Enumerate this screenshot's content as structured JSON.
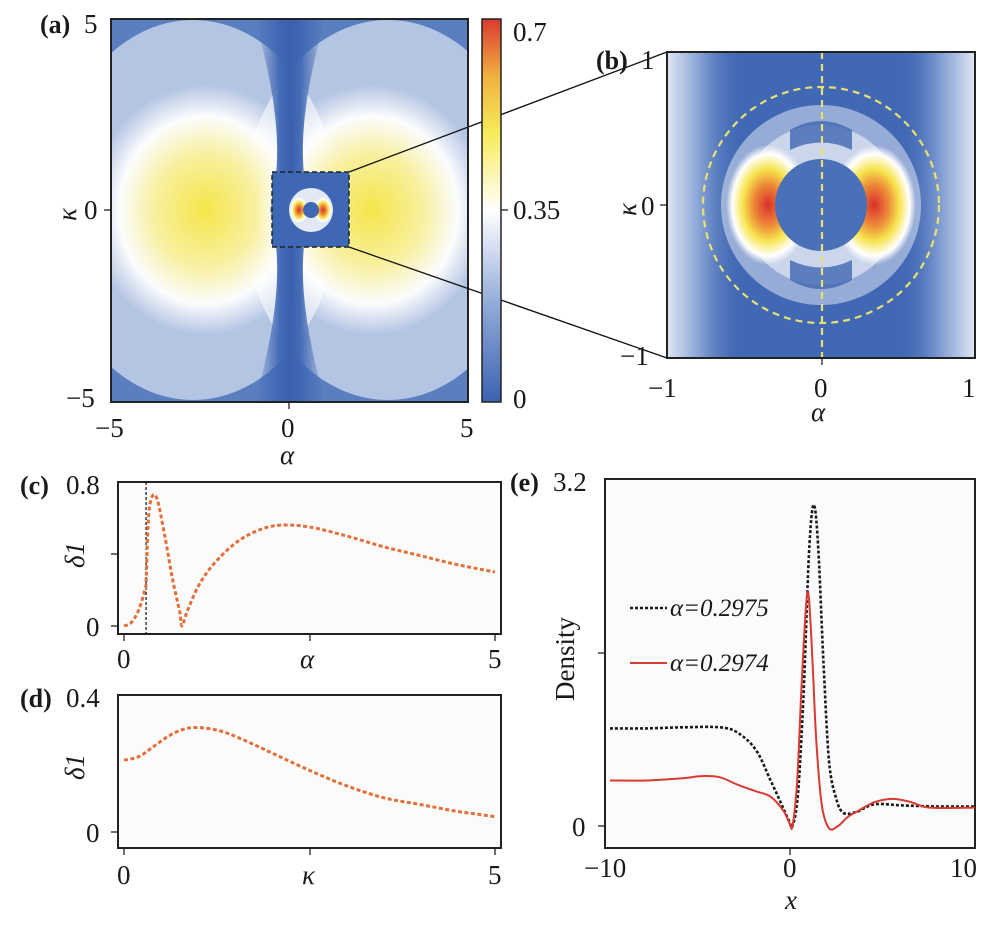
{
  "chart_data": [
    {
      "panel": "(a)",
      "type": "heatmap",
      "xlabel": "α",
      "ylabel": "κ",
      "xlim": [
        -5,
        5
      ],
      "ylim": [
        -5,
        5
      ],
      "xticks": [
        "−5",
        "0",
        "5"
      ],
      "yticks": [
        "5",
        "0",
        "−5"
      ],
      "colorbar": {
        "min": 0,
        "max": 0.7,
        "ticks": [
          "0.7",
          "0.35",
          "0"
        ],
        "colors": [
          "#3b62b0",
          "#ffffff",
          "#f5e84a",
          "#dc3b2c"
        ]
      },
      "inset_box": {
        "alpha": [
          -1,
          1
        ],
        "kappa": [
          -1,
          1
        ]
      },
      "features": [
        {
          "description": "broad yellow lobes",
          "alpha": -2.3,
          "kappa": 0,
          "value": 0.45
        },
        {
          "description": "broad yellow lobes",
          "alpha": 2.3,
          "kappa": 0,
          "value": 0.45
        },
        {
          "description": "dark blue vertical band",
          "alpha": 0,
          "value": 0.05
        }
      ]
    },
    {
      "panel": "(b)",
      "type": "heatmap",
      "xlabel": "α",
      "ylabel": "κ",
      "xlim": [
        -1,
        1
      ],
      "ylim": [
        -1,
        1
      ],
      "xticks": [
        "−1",
        "0",
        "1"
      ],
      "yticks": [
        "1",
        "0",
        "−1"
      ],
      "features": [
        {
          "description": "red crescent peak",
          "alpha": -0.36,
          "kappa": 0,
          "value": 0.7
        },
        {
          "description": "red crescent peak",
          "alpha": 0.36,
          "kappa": 0,
          "value": 0.7
        },
        {
          "description": "inner blue disk radius",
          "radius": 0.3
        },
        {
          "description": "dashed yellow circle radius",
          "radius": 0.77
        },
        {
          "description": "dashed yellow vertical line",
          "alpha": 0
        }
      ]
    },
    {
      "panel": "(c)",
      "type": "line",
      "xlabel": "α",
      "ylabel": "δ1",
      "xlim": [
        0,
        5
      ],
      "ylim": [
        0,
        0.8
      ],
      "xticks": [
        "0",
        "",
        "5"
      ],
      "yticks": [
        "0.8",
        "",
        "0"
      ],
      "vline": 0.2975,
      "series": [
        {
          "name": "δ1",
          "color": "#e2703a",
          "x": [
            0.0,
            0.1,
            0.2,
            0.28,
            0.2975,
            0.33,
            0.38,
            0.45,
            0.55,
            0.65,
            0.75,
            0.78,
            0.85,
            1.0,
            1.2,
            1.5,
            1.8,
            2.1,
            2.5,
            3.0,
            3.5,
            4.0,
            4.5,
            5.0
          ],
          "y": [
            0.0,
            0.02,
            0.09,
            0.2,
            0.25,
            0.6,
            0.72,
            0.7,
            0.5,
            0.27,
            0.08,
            0.0,
            0.08,
            0.22,
            0.34,
            0.46,
            0.53,
            0.56,
            0.55,
            0.5,
            0.44,
            0.39,
            0.34,
            0.3
          ]
        }
      ]
    },
    {
      "panel": "(d)",
      "type": "line",
      "xlabel": "κ",
      "ylabel": "δ1",
      "xlim": [
        0,
        5
      ],
      "ylim": [
        0,
        0.4
      ],
      "xticks": [
        "0",
        "",
        "5"
      ],
      "yticks": [
        "0.4",
        "",
        "0"
      ],
      "series": [
        {
          "name": "δ1",
          "color": "#e2703a",
          "x": [
            0.0,
            0.2,
            0.4,
            0.6,
            0.8,
            1.0,
            1.3,
            1.6,
            2.0,
            2.5,
            3.0,
            3.5,
            4.0,
            4.5,
            5.0
          ],
          "y": [
            0.21,
            0.22,
            0.25,
            0.28,
            0.3,
            0.305,
            0.295,
            0.27,
            0.23,
            0.18,
            0.135,
            0.1,
            0.08,
            0.06,
            0.045
          ]
        }
      ]
    },
    {
      "panel": "(e)",
      "type": "line",
      "xlabel": "x",
      "ylabel": "Density",
      "xlim": [
        -10,
        10
      ],
      "ylim": [
        0,
        3.2
      ],
      "xticks": [
        "−10",
        "0",
        "10"
      ],
      "yticks": [
        "3.2",
        "",
        "0"
      ],
      "legend": "center-left",
      "series": [
        {
          "name": "α=0.2975",
          "style": "dotted",
          "color": "#1a1a1a",
          "x": [
            -10,
            -8,
            -6,
            -4,
            -3,
            -2,
            -1.2,
            -0.6,
            -0.2,
            0.0,
            0.3,
            0.6,
            0.9,
            1.15,
            1.4,
            1.7,
            2.0,
            2.4,
            2.8,
            3.5,
            4.5,
            6,
            8,
            10
          ],
          "y": [
            0.9,
            0.9,
            0.91,
            0.91,
            0.86,
            0.7,
            0.42,
            0.2,
            0.05,
            0.0,
            0.3,
            1.2,
            2.5,
            2.96,
            2.6,
            1.5,
            0.6,
            0.25,
            0.12,
            0.13,
            0.2,
            0.19,
            0.18,
            0.18
          ]
        },
        {
          "name": "α=0.2974",
          "style": "solid",
          "color": "#d93a34",
          "x": [
            -10,
            -8,
            -6,
            -5,
            -4,
            -3,
            -2,
            -1.2,
            -0.5,
            -0.15,
            0.0,
            0.25,
            0.5,
            0.75,
            0.9,
            1.1,
            1.3,
            1.6,
            2.0,
            2.5,
            3.0,
            3.5,
            4.5,
            5.5,
            6.5,
            7.5,
            10
          ],
          "y": [
            0.42,
            0.42,
            0.44,
            0.46,
            0.45,
            0.38,
            0.32,
            0.27,
            0.14,
            0.02,
            0.0,
            0.4,
            1.3,
            2.05,
            2.1,
            1.5,
            0.8,
            0.2,
            -0.02,
            0.0,
            0.08,
            0.13,
            0.22,
            0.25,
            0.22,
            0.17,
            0.17
          ]
        }
      ]
    }
  ]
}
